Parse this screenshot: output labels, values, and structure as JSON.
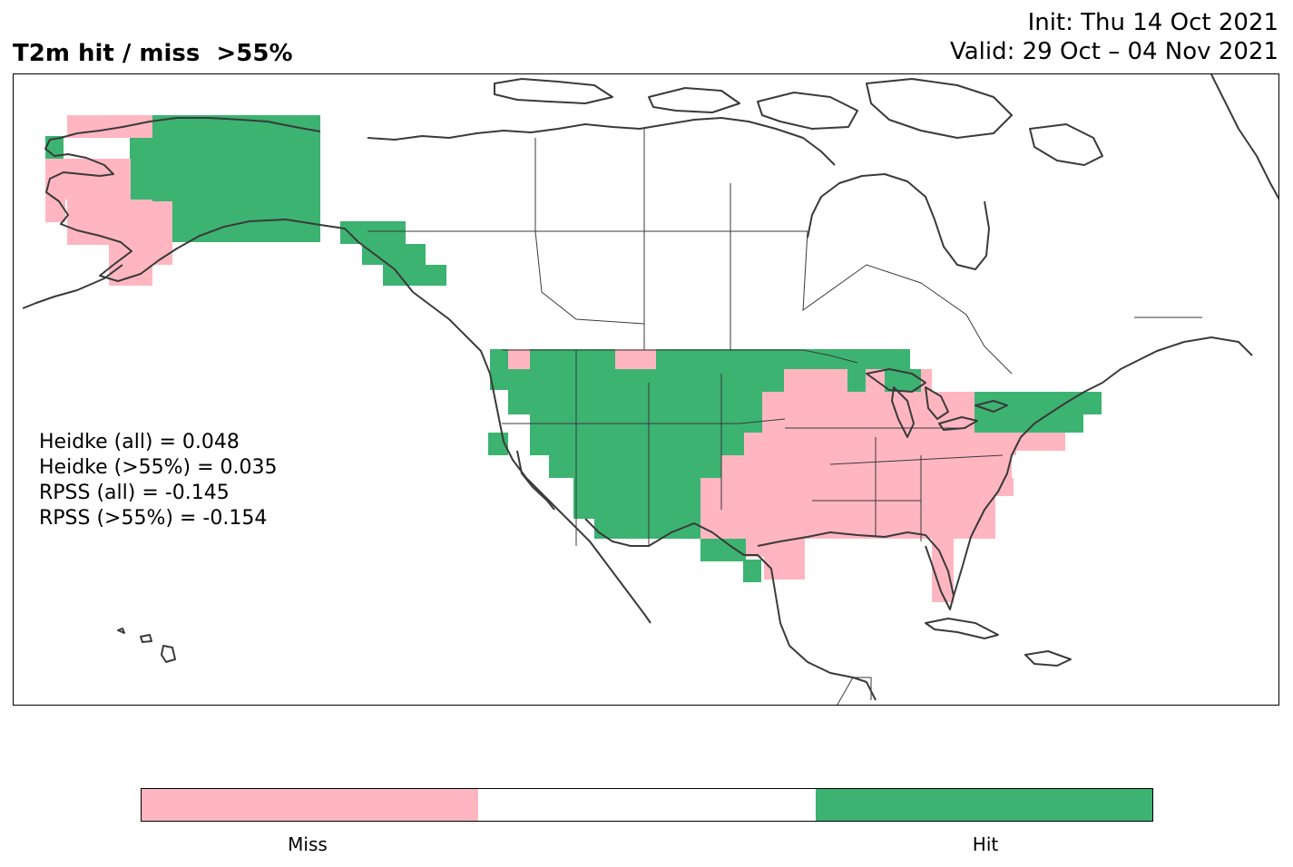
{
  "title": "T2m hit / miss  >55%",
  "init": "Init: Thu 14 Oct 2021",
  "valid": "Valid: 29 Oct – 04 Nov 2021",
  "colors": {
    "miss": "#ffb6c1",
    "hit": "#3cb371",
    "neutral": "#ffffff",
    "coast": "#3a3a3a",
    "border": "#3a3a3a"
  },
  "stats": [
    "Heidke (all) = 0.048",
    "Heidke (>55%) = 0.035",
    "RPSS (all) = -0.145",
    "RPSS (>55%) = -0.154"
  ],
  "legend": {
    "miss_label": "Miss",
    "hit_label": "Hit"
  },
  "chart_data": {
    "type": "heatmap",
    "categories": [
      "Miss",
      "Hit"
    ],
    "grid_spacing_deg": 2
  }
}
